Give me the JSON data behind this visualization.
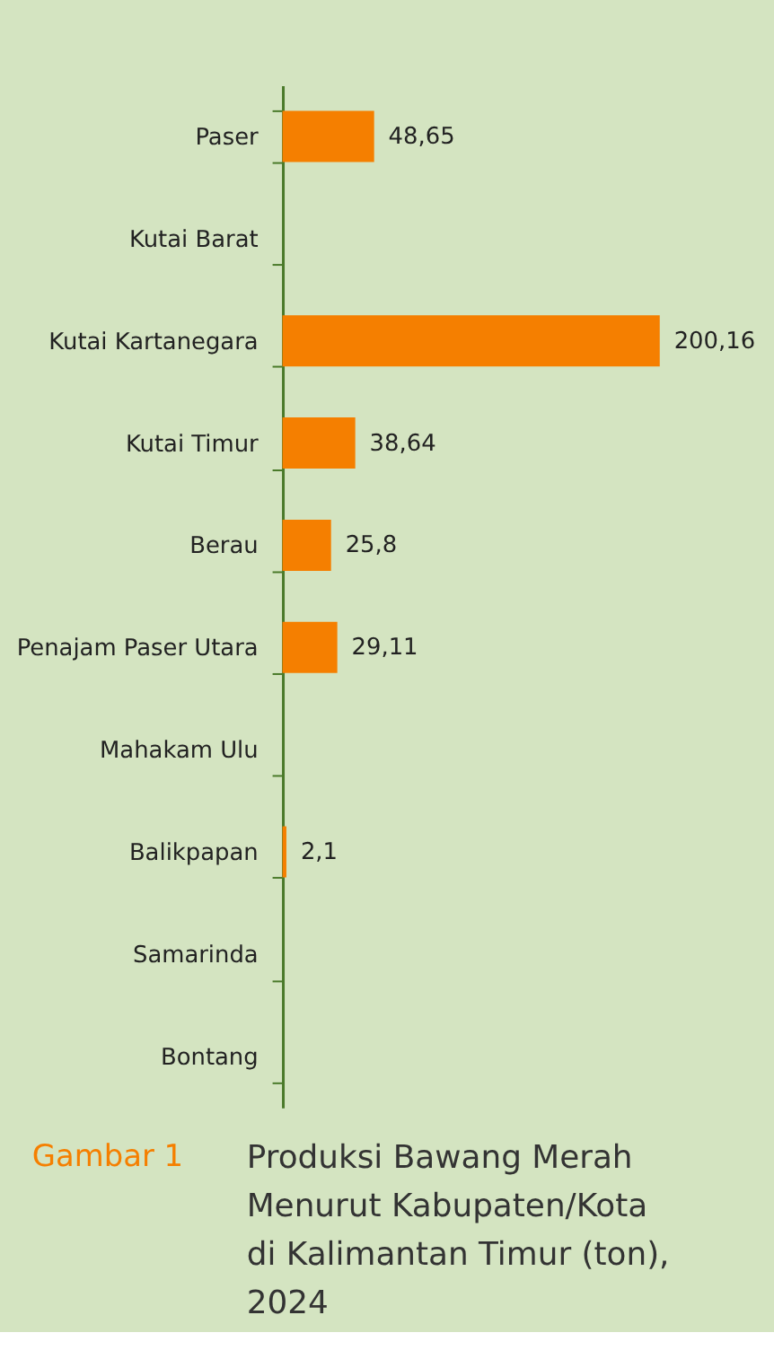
{
  "chart_data": {
    "type": "bar",
    "orientation": "horizontal",
    "title": "Produksi Bawang Merah\nMenurut Kabupaten/Kota\ndi Kalimantan Timur (ton),\n2024",
    "annotations": [
      "Gambar 1"
    ],
    "categories": [
      "Paser",
      "Kutai Barat",
      "Kutai Kartanegara",
      "Kutai Timur",
      "Berau",
      "Penajam Paser Utara",
      "Mahakam Ulu",
      "Balikpapan",
      "Samarinda",
      "Bontang"
    ],
    "values": [
      48.65,
      null,
      200.16,
      38.64,
      25.8,
      29.11,
      null,
      2.1,
      null,
      null
    ],
    "value_labels": [
      "48,65",
      null,
      "200,16",
      "38,64",
      "25,8",
      "29,11",
      null,
      "2,1",
      null,
      null
    ],
    "color": "#f57f00",
    "grid": false
  }
}
